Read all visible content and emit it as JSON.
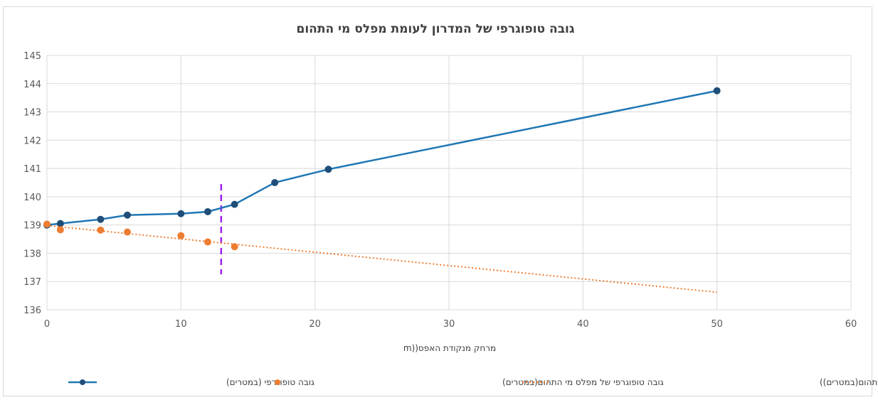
{
  "chart_data": {
    "type": "line",
    "title": "גובה טופוגרפי של המדרון לעומת מפלס מי התהום",
    "xlabel": "מרחק מנקודת האפס((m",
    "ylabel": "",
    "xlim": [
      0,
      60
    ],
    "ylim": [
      136,
      145
    ],
    "x_ticks": [
      "0",
      "10",
      "20",
      "30",
      "40",
      "50",
      "60"
    ],
    "y_ticks": [
      "136",
      "137",
      "138",
      "139",
      "140",
      "141",
      "142",
      "143",
      "144",
      "145"
    ],
    "grid": true,
    "legend_position": "bottom",
    "series": [
      {
        "name": "גובה טופוגרפי (במטרים)",
        "style": "line-markers",
        "color": "#1f77b4",
        "marker_color": "#1f4e79",
        "x": [
          0,
          1,
          4,
          6,
          10,
          12,
          14,
          17,
          21,
          50
        ],
        "y": [
          139.0,
          139.05,
          139.2,
          139.35,
          139.4,
          139.47,
          139.73,
          140.5,
          140.97,
          143.75
        ]
      },
      {
        "name": "גובה טופוגרפי של מפלס מי התהום(במטרים)",
        "style": "markers",
        "color": "#ed7d31",
        "x": [
          0,
          1,
          4,
          6,
          10,
          12,
          14
        ],
        "y": [
          139.03,
          138.83,
          138.82,
          138.75,
          138.62,
          138.4,
          138.23
        ]
      },
      {
        "name": "ליניארי (גובה טופוגרפי של מפלס מי התהום(במטרים))",
        "style": "trendline-dotted",
        "color": "#ed7d31",
        "x": [
          0,
          50
        ],
        "y": [
          138.98,
          136.62
        ]
      }
    ],
    "annotations": [
      {
        "type": "vertical-dashed-line",
        "color": "#a020f0",
        "x": 13.0,
        "y": [
          137.25,
          140.45
        ]
      }
    ]
  }
}
